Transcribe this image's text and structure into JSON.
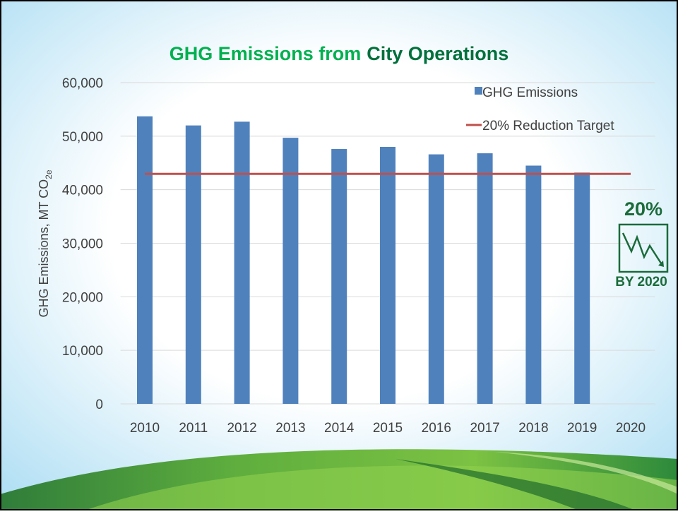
{
  "chart_data": {
    "type": "bar",
    "title": [
      "GHG Emissions from",
      "City Operations"
    ],
    "title_colors": [
      "#00b050",
      "#00703c"
    ],
    "y_label": [
      "GHG Emissions, MT CO",
      "2e"
    ],
    "categories": [
      "2010",
      "2011",
      "2012",
      "2013",
      "2014",
      "2015",
      "2016",
      "2017",
      "2018",
      "2019",
      "2020"
    ],
    "series": [
      {
        "name": "GHG Emissions",
        "type": "bar",
        "color": "#4f81bd",
        "values": [
          53700,
          52000,
          52700,
          49700,
          47600,
          48000,
          46600,
          46800,
          44500,
          43200,
          null
        ]
      },
      {
        "name": "20% Reduction Target",
        "type": "line",
        "color": "#c0504d",
        "values": [
          42960,
          42960,
          42960,
          42960,
          42960,
          42960,
          42960,
          42960,
          42960,
          42960,
          42960
        ]
      }
    ],
    "ylim": [
      0,
      60000
    ],
    "yticks": [
      0,
      {
        "value": 10000,
        "label": "10,000"
      },
      {
        "value": 20000,
        "label": "20,000"
      },
      {
        "value": 30000,
        "label": "30,000"
      },
      {
        "value": 40000,
        "label": "40,000"
      },
      {
        "value": 50000,
        "label": "50,000"
      },
      {
        "value": 60000,
        "label": "60,000"
      }
    ],
    "grid": true,
    "legend": "top-right",
    "annotations": [
      "20%",
      "BY 2020"
    ]
  }
}
